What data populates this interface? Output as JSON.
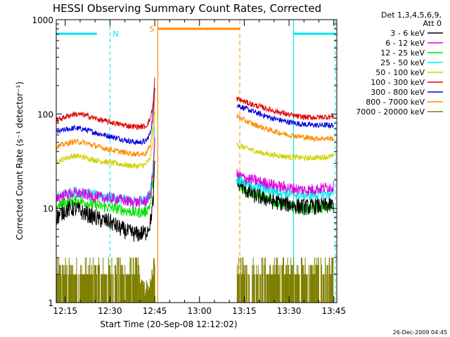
{
  "chart_data": {
    "type": "line",
    "title": "HESSI Observing Summary Count Rates, Corrected",
    "xlabel": "Start Time (20-Sep-08 12:12:02)",
    "ylabel": "Corrected Count Rate (s⁻¹ detector⁻¹)",
    "x_ticks": [
      "12:15",
      "12:30",
      "12:45",
      "13:00",
      "13:15",
      "13:30",
      "13:45"
    ],
    "x_tick_minutes": [
      15,
      30,
      45,
      60,
      75,
      90,
      105
    ],
    "x_range_minutes": [
      12,
      106
    ],
    "y_scale": "log",
    "ylim": [
      1,
      1000
    ],
    "y_ticks": [
      "1",
      "10",
      "100",
      "1000"
    ],
    "legend_header": [
      "Det 1,3,4,5,6,9,",
      "Att 0"
    ],
    "legend_position": "right",
    "footer_date": "26-Dec-2009 04:45",
    "annotations": [
      {
        "label": "N",
        "minute": 30,
        "color": "#00e5ee"
      },
      {
        "label": "S",
        "minute": 46,
        "color": "#ff8c00"
      }
    ],
    "night_intervals": [
      [
        12,
        27.5
      ],
      [
        91.5,
        105.5
      ]
    ],
    "saa_interval": [
      46,
      73.5
    ],
    "series": [
      {
        "name": "3 - 6 keV",
        "color": "#000000",
        "pre": [
          [
            12,
            8
          ],
          [
            15,
            9.5
          ],
          [
            18,
            10
          ],
          [
            21,
            9
          ],
          [
            24,
            8.2
          ],
          [
            27,
            7.5
          ],
          [
            30,
            7.2
          ],
          [
            33,
            6.2
          ],
          [
            36,
            5.6
          ],
          [
            39,
            5.3
          ],
          [
            42,
            5.5
          ],
          [
            43.5,
            7
          ],
          [
            44.5,
            12
          ],
          [
            45,
            30
          ]
        ],
        "post": [
          [
            72.5,
            20
          ],
          [
            75,
            16
          ],
          [
            78,
            14
          ],
          [
            81,
            13
          ],
          [
            84,
            12
          ],
          [
            87,
            11.5
          ],
          [
            90,
            11
          ],
          [
            93,
            10.5
          ],
          [
            96,
            10.3
          ],
          [
            99,
            10.5
          ],
          [
            102,
            10.6
          ],
          [
            105,
            10.8
          ]
        ]
      },
      {
        "name": "6 - 12 keV",
        "color": "#e000e0",
        "pre": [
          [
            12,
            13
          ],
          [
            15,
            14
          ],
          [
            18,
            14.5
          ],
          [
            21,
            14.2
          ],
          [
            24,
            13.5
          ],
          [
            27,
            13
          ],
          [
            30,
            12.8
          ],
          [
            33,
            12.5
          ],
          [
            36,
            11.8
          ],
          [
            39,
            11.6
          ],
          [
            42,
            11.8
          ],
          [
            43.5,
            14
          ],
          [
            44.5,
            25
          ],
          [
            45,
            60
          ]
        ],
        "post": [
          [
            72.5,
            23
          ],
          [
            75,
            21
          ],
          [
            78,
            20
          ],
          [
            81,
            19
          ],
          [
            84,
            18
          ],
          [
            87,
            17
          ],
          [
            90,
            16.5
          ],
          [
            93,
            16
          ],
          [
            96,
            15.6
          ],
          [
            99,
            16
          ],
          [
            102,
            16.5
          ],
          [
            105,
            17
          ]
        ]
      },
      {
        "name": "12 - 25 keV",
        "color": "#00e000",
        "pre": [
          [
            12,
            10.5
          ],
          [
            15,
            11.5
          ],
          [
            18,
            12
          ],
          [
            21,
            11.8
          ],
          [
            24,
            11
          ],
          [
            27,
            10.5
          ],
          [
            30,
            10.2
          ],
          [
            33,
            9.8
          ],
          [
            36,
            9.3
          ],
          [
            39,
            9
          ],
          [
            42,
            9.2
          ],
          [
            43.5,
            11
          ],
          [
            44.5,
            20
          ],
          [
            45,
            50
          ]
        ],
        "post": [
          [
            72.5,
            18
          ],
          [
            75,
            16
          ],
          [
            78,
            14.5
          ],
          [
            81,
            13
          ],
          [
            84,
            12
          ],
          [
            87,
            11.2
          ],
          [
            90,
            10.5
          ],
          [
            93,
            10
          ],
          [
            96,
            9.8
          ],
          [
            99,
            10
          ],
          [
            102,
            10.2
          ],
          [
            105,
            10.5
          ]
        ]
      },
      {
        "name": "25 - 50 keV",
        "color": "#00e5ee",
        "pre": [
          [
            12,
            13
          ],
          [
            15,
            14
          ],
          [
            18,
            15
          ],
          [
            21,
            14.8
          ],
          [
            24,
            14
          ],
          [
            27,
            13.3
          ],
          [
            30,
            13
          ],
          [
            33,
            12.6
          ],
          [
            36,
            12
          ],
          [
            39,
            11.8
          ],
          [
            42,
            12
          ],
          [
            43.5,
            15
          ],
          [
            44.5,
            28
          ],
          [
            45,
            70
          ]
        ],
        "post": [
          [
            72.5,
            21
          ],
          [
            75,
            19
          ],
          [
            78,
            17.5
          ],
          [
            81,
            16.5
          ],
          [
            84,
            15.5
          ],
          [
            87,
            15
          ],
          [
            90,
            14.5
          ],
          [
            93,
            14
          ],
          [
            96,
            13.8
          ],
          [
            99,
            14
          ],
          [
            102,
            14.2
          ],
          [
            105,
            14.5
          ]
        ]
      },
      {
        "name": "50 - 100 keV",
        "color": "#d0d000",
        "pre": [
          [
            12,
            31
          ],
          [
            15,
            34
          ],
          [
            18,
            36
          ],
          [
            21,
            35
          ],
          [
            24,
            33
          ],
          [
            27,
            31.5
          ],
          [
            30,
            30.5
          ],
          [
            33,
            29.5
          ],
          [
            36,
            28.5
          ],
          [
            39,
            28
          ],
          [
            42,
            29
          ],
          [
            43.5,
            34
          ],
          [
            44.5,
            55
          ],
          [
            45,
            100
          ]
        ],
        "post": [
          [
            72.5,
            48
          ],
          [
            75,
            44
          ],
          [
            78,
            41
          ],
          [
            81,
            38.5
          ],
          [
            84,
            37
          ],
          [
            87,
            36
          ],
          [
            90,
            35
          ],
          [
            93,
            34.5
          ],
          [
            96,
            34
          ],
          [
            99,
            34.5
          ],
          [
            102,
            35
          ],
          [
            105,
            35.5
          ]
        ]
      },
      {
        "name": "100 - 300 keV",
        "color": "#e00000",
        "pre": [
          [
            12,
            85
          ],
          [
            15,
            93
          ],
          [
            18,
            100
          ],
          [
            21,
            98
          ],
          [
            24,
            92
          ],
          [
            27,
            86
          ],
          [
            30,
            82
          ],
          [
            33,
            78
          ],
          [
            36,
            75
          ],
          [
            39,
            73
          ],
          [
            42,
            74
          ],
          [
            43.5,
            88
          ],
          [
            44.5,
            130
          ],
          [
            45,
            240
          ]
        ],
        "post": [
          [
            72.5,
            145
          ],
          [
            75,
            135
          ],
          [
            78,
            125
          ],
          [
            81,
            118
          ],
          [
            84,
            110
          ],
          [
            87,
            104
          ],
          [
            90,
            98
          ],
          [
            93,
            94
          ],
          [
            96,
            92
          ],
          [
            99,
            92
          ],
          [
            102,
            93
          ],
          [
            105,
            94
          ]
        ]
      },
      {
        "name": "300 - 800 keV",
        "color": "#0000e0",
        "pre": [
          [
            12,
            64
          ],
          [
            15,
            68
          ],
          [
            18,
            71
          ],
          [
            21,
            69
          ],
          [
            24,
            65
          ],
          [
            27,
            61
          ],
          [
            30,
            58
          ],
          [
            33,
            55
          ],
          [
            36,
            52
          ],
          [
            39,
            50
          ],
          [
            42,
            51
          ],
          [
            43.5,
            62
          ],
          [
            44.5,
            100
          ],
          [
            45,
            200
          ]
        ],
        "post": [
          [
            72.5,
            125
          ],
          [
            75,
            115
          ],
          [
            78,
            106
          ],
          [
            81,
            98
          ],
          [
            84,
            91
          ],
          [
            87,
            86
          ],
          [
            90,
            82
          ],
          [
            93,
            79
          ],
          [
            96,
            77
          ],
          [
            99,
            76
          ],
          [
            102,
            76
          ],
          [
            105,
            76
          ]
        ]
      },
      {
        "name": "800 - 7000 keV",
        "color": "#ff8c00",
        "pre": [
          [
            12,
            45
          ],
          [
            15,
            48
          ],
          [
            18,
            51
          ],
          [
            21,
            50
          ],
          [
            24,
            47
          ],
          [
            27,
            44
          ],
          [
            30,
            42
          ],
          [
            33,
            40
          ],
          [
            36,
            38.5
          ],
          [
            39,
            37.5
          ],
          [
            42,
            38
          ],
          [
            43.5,
            46
          ],
          [
            44.5,
            75
          ],
          [
            45,
            160
          ]
        ],
        "post": [
          [
            72.5,
            95
          ],
          [
            75,
            86
          ],
          [
            78,
            78
          ],
          [
            81,
            72
          ],
          [
            84,
            67
          ],
          [
            87,
            63
          ],
          [
            90,
            60
          ],
          [
            93,
            58
          ],
          [
            96,
            56
          ],
          [
            99,
            55
          ],
          [
            102,
            55
          ],
          [
            105,
            55
          ]
        ]
      },
      {
        "name": "7000 - 20000 keV",
        "color": "#808000",
        "pre": [
          [
            12,
            1.6
          ],
          [
            15,
            2.3
          ],
          [
            18,
            2.6
          ],
          [
            21,
            2.8
          ],
          [
            24,
            2.4
          ],
          [
            27,
            2.1
          ],
          [
            30,
            1.5
          ],
          [
            33,
            1.4
          ],
          [
            36,
            1.3
          ],
          [
            39,
            1.2
          ],
          [
            42,
            1.2
          ],
          [
            43.5,
            1.4
          ],
          [
            44.5,
            2
          ],
          [
            45,
            3
          ]
        ],
        "post": [
          [
            72.5,
            2.5
          ],
          [
            75,
            2
          ],
          [
            78,
            1.6
          ],
          [
            81,
            1.3
          ],
          [
            84,
            1.2
          ],
          [
            87,
            1.2
          ],
          [
            90,
            1.1
          ],
          [
            93,
            1.1
          ],
          [
            96,
            1.1
          ],
          [
            99,
            1.1
          ],
          [
            102,
            1.1
          ],
          [
            105,
            1.1
          ]
        ]
      }
    ]
  }
}
